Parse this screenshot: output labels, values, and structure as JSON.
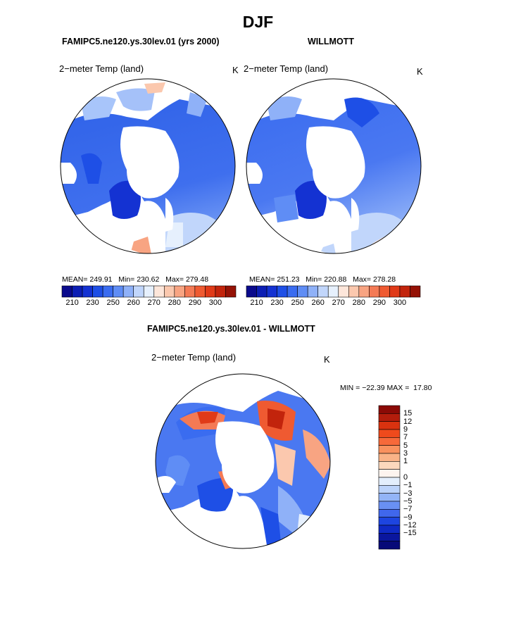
{
  "title": "DJF",
  "panels": [
    {
      "heading": "FAMIPC5.ne120.ys.30lev.01 (yrs 2000)",
      "field": "2−meter Temp (land)",
      "units": "K",
      "stats": "MEAN= 249.91   Min= 230.62   Max= 279.48"
    },
    {
      "heading": "WILLMOTT",
      "field": "2−meter Temp (land)",
      "units": "K",
      "stats": "MEAN= 251.23   Min= 220.88   Max= 278.28"
    }
  ],
  "diff_panel": {
    "heading": "FAMIPC5.ne120.ys.30lev.01 - WILLMOTT",
    "field": "2−meter Temp (land)",
    "units": "K",
    "minmax": "MIN = −22.39 MAX =  17.80"
  },
  "abs_colorbar": {
    "colors": [
      "#0a0a8c",
      "#0c1eb4",
      "#1432d2",
      "#1e4fe6",
      "#3a6cf0",
      "#5f8df5",
      "#8fb1f8",
      "#c1d6fb",
      "#e6f0fd",
      "#fde6da",
      "#fbc8ae",
      "#f8a482",
      "#f47a55",
      "#ef5a31",
      "#e03a18",
      "#c2240c",
      "#951206"
    ],
    "labels": [
      "210",
      "230",
      "250",
      "260",
      "270",
      "280",
      "290",
      "300"
    ]
  },
  "diff_colorbar": {
    "colors": [
      "#8b0a06",
      "#b31d0c",
      "#d9320f",
      "#ef4a1c",
      "#f7693a",
      "#f9915e",
      "#fab387",
      "#fcd8bd",
      "#fdf4ef",
      "#e3eefc",
      "#bcd3fa",
      "#93b4f7",
      "#6990f3",
      "#4067ec",
      "#1d45e0",
      "#0f2ac5",
      "#0a169e",
      "#070a78"
    ],
    "labels": [
      "15",
      "12",
      "9",
      "7",
      "5",
      "3",
      "1",
      "0",
      "−1",
      "−3",
      "−5",
      "−7",
      "−9",
      "−12",
      "−15"
    ]
  }
}
